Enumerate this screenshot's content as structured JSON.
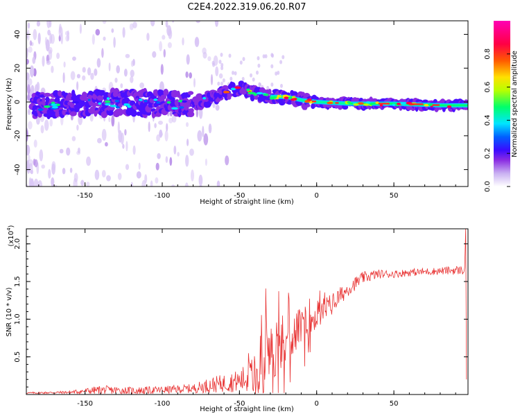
{
  "title": "C2E4.2022.319.06.20.R07",
  "chart_data": [
    {
      "type": "heatmap",
      "xlabel": "Height of straight line (km)",
      "ylabel": "Frequency (Hz)",
      "xlim": [
        -188,
        98
      ],
      "ylim": [
        -50,
        48
      ],
      "x_ticks": [
        -150,
        -100,
        -50,
        0,
        50
      ],
      "y_ticks": [
        -40,
        -20,
        0,
        20,
        40
      ],
      "colorbar": {
        "label": "Normalized spectral amplitude",
        "range": [
          0,
          1
        ],
        "ticks": [
          "0.0",
          "0.2",
          "0.4",
          "0.6",
          "0.8"
        ],
        "tick_values": [
          0.0,
          0.2,
          0.4,
          0.6,
          0.8
        ],
        "colors": [
          "#ffffff",
          "#c9b0f2",
          "#8a2be2",
          "#3a0bff",
          "#0060ff",
          "#00e5ff",
          "#00ff6a",
          "#b8ff00",
          "#ffe000",
          "#ff5a00",
          "#ff0044",
          "#ff00b4"
        ]
      },
      "ridge": {
        "description_points_x": [
          -180,
          -150,
          -120,
          -100,
          -90,
          -80,
          -70,
          -60,
          -50,
          -40,
          -30,
          -20,
          -10,
          0,
          20,
          50,
          80,
          95
        ],
        "description_points_freq": [
          -2,
          -1,
          0,
          -1,
          -1,
          -1,
          2,
          5,
          8,
          5,
          3,
          3,
          1,
          0,
          -1,
          -1,
          -2,
          -2
        ]
      }
    },
    {
      "type": "line",
      "xlabel": "Height of straight line (km)",
      "ylabel": "SNR (10 * v/v)",
      "multiplier_label": "(x10",
      "multiplier_exp": "4",
      "xlim": [
        -188,
        98
      ],
      "ylim": [
        0,
        2.2
      ],
      "x_ticks": [
        -150,
        -100,
        -50,
        0,
        50
      ],
      "y_ticks": [
        0.5,
        1.0,
        1.5,
        2.0
      ],
      "y_tick_labels": [
        "0.5",
        "1.0",
        "1.5",
        "2.0"
      ],
      "color": "#e83232",
      "envelope": {
        "x": [
          -188,
          -160,
          -140,
          -120,
          -100,
          -80,
          -70,
          -60,
          -50,
          -40,
          -35,
          -30,
          -20,
          -10,
          0,
          10,
          20,
          30,
          40,
          50,
          60,
          70,
          80,
          90,
          96
        ],
        "base": [
          0.02,
          0.03,
          0.06,
          0.05,
          0.06,
          0.08,
          0.12,
          0.15,
          0.18,
          0.25,
          0.45,
          0.55,
          0.75,
          0.9,
          1.05,
          1.2,
          1.4,
          1.55,
          1.6,
          1.6,
          1.62,
          1.63,
          1.64,
          1.65,
          1.65
        ],
        "amp": [
          0.01,
          0.02,
          0.06,
          0.05,
          0.05,
          0.06,
          0.1,
          0.12,
          0.15,
          0.3,
          0.45,
          0.4,
          0.35,
          0.25,
          0.2,
          0.15,
          0.1,
          0.08,
          0.06,
          0.05,
          0.05,
          0.05,
          0.05,
          0.06,
          0.06
        ]
      }
    }
  ]
}
